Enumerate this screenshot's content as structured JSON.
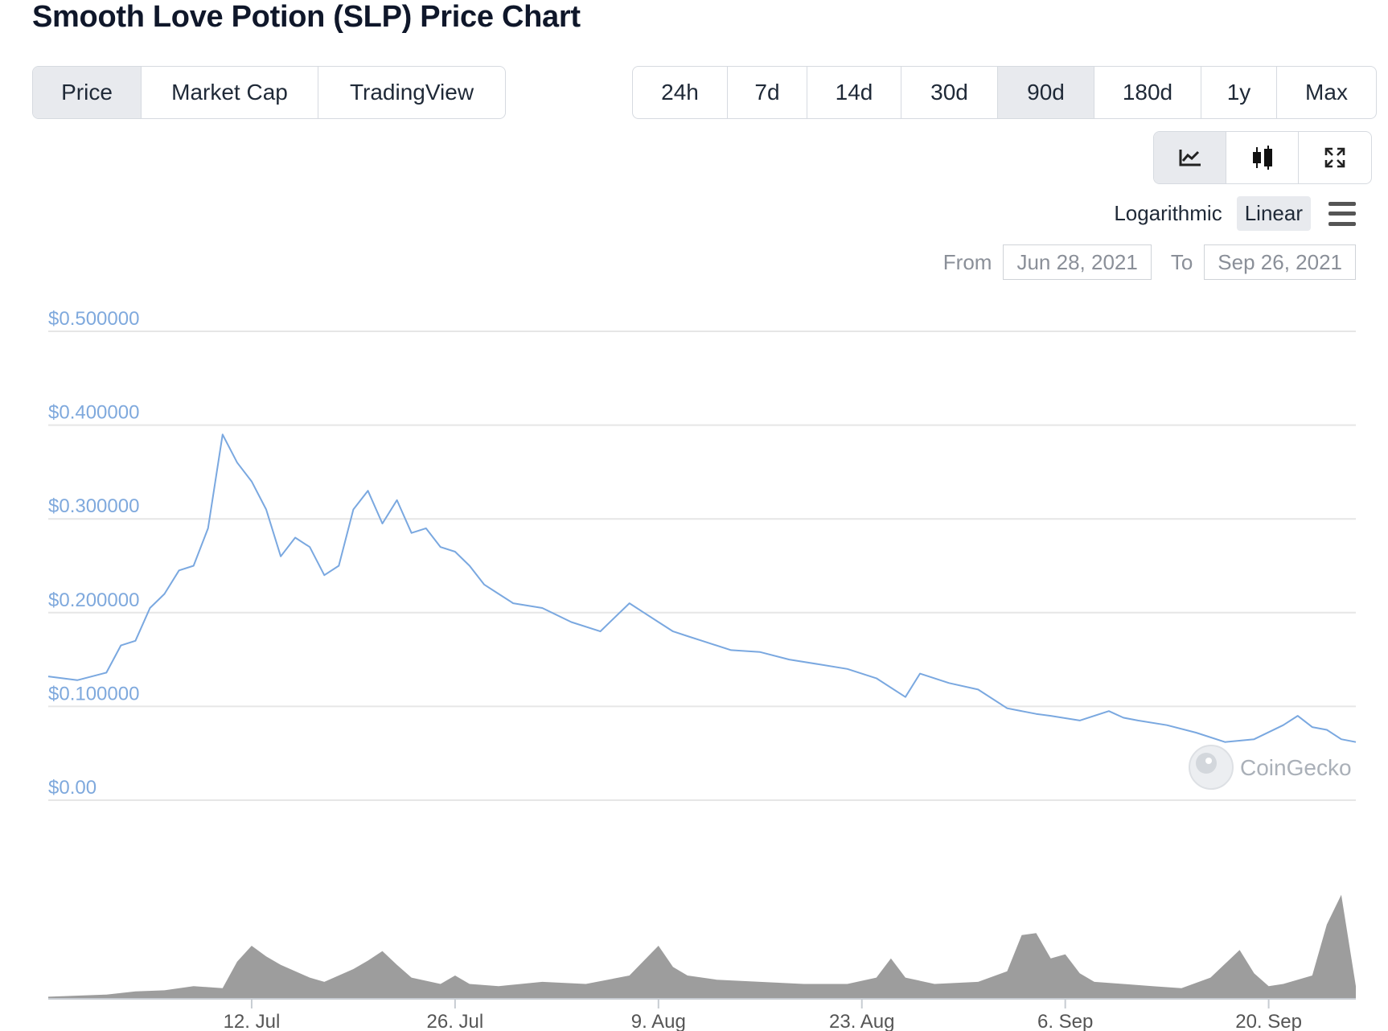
{
  "header": {
    "title": "Smooth Love Potion (SLP) Price Chart"
  },
  "tabs": [
    {
      "label": "Price",
      "active": true
    },
    {
      "label": "Market Cap",
      "active": false
    },
    {
      "label": "TradingView",
      "active": false
    }
  ],
  "ranges": [
    {
      "label": "24h",
      "active": false
    },
    {
      "label": "7d",
      "active": false
    },
    {
      "label": "14d",
      "active": false
    },
    {
      "label": "30d",
      "active": false
    },
    {
      "label": "90d",
      "active": true
    },
    {
      "label": "180d",
      "active": false
    },
    {
      "label": "1y",
      "active": false
    },
    {
      "label": "Max",
      "active": false
    }
  ],
  "tools": [
    {
      "icon": "line-chart-icon",
      "active": true
    },
    {
      "icon": "candlestick-icon",
      "active": false
    },
    {
      "icon": "fullscreen-icon",
      "active": false
    }
  ],
  "scale": {
    "log_label": "Logarithmic",
    "linear_label": "Linear",
    "active": "Linear"
  },
  "date_range": {
    "from_label": "From",
    "from_value": "Jun 28, 2021",
    "to_label": "To",
    "to_value": "Sep 26, 2021"
  },
  "watermark": "CoinGecko",
  "colors": {
    "price_line": "#7aa8e0",
    "volume": "#8c8c8c",
    "grid": "#e6e6e6"
  },
  "chart_data": {
    "type": "line",
    "title": "",
    "xlabel": "",
    "ylabel": "",
    "y_ticks": [
      "$0.00",
      "$0.100000",
      "$0.200000",
      "$0.300000",
      "$0.400000",
      "$0.500000"
    ],
    "ylim": [
      0,
      0.5
    ],
    "xlim": [
      "2021-06-28",
      "2021-09-26"
    ],
    "x_ticks": [
      {
        "date": "2021-07-12",
        "label": "12. Jul"
      },
      {
        "date": "2021-07-26",
        "label": "26. Jul"
      },
      {
        "date": "2021-08-09",
        "label": "9. Aug"
      },
      {
        "date": "2021-08-23",
        "label": "23. Aug"
      },
      {
        "date": "2021-09-06",
        "label": "6. Sep"
      },
      {
        "date": "2021-09-20",
        "label": "20. Sep"
      }
    ],
    "grid": true,
    "series": [
      {
        "x": [
          "2021-06-28",
          "2021-06-30",
          "2021-07-02",
          "2021-07-03",
          "2021-07-04",
          "2021-07-05",
          "2021-07-06",
          "2021-07-07",
          "2021-07-08",
          "2021-07-09",
          "2021-07-10",
          "2021-07-11",
          "2021-07-12",
          "2021-07-13",
          "2021-07-14",
          "2021-07-15",
          "2021-07-16",
          "2021-07-17",
          "2021-07-18",
          "2021-07-19",
          "2021-07-20",
          "2021-07-21",
          "2021-07-22",
          "2021-07-23",
          "2021-07-24",
          "2021-07-25",
          "2021-07-26",
          "2021-07-27",
          "2021-07-28",
          "2021-07-29",
          "2021-07-30",
          "2021-08-01",
          "2021-08-03",
          "2021-08-05",
          "2021-08-07",
          "2021-08-08",
          "2021-08-09",
          "2021-08-10",
          "2021-08-11",
          "2021-08-12",
          "2021-08-14",
          "2021-08-16",
          "2021-08-18",
          "2021-08-20",
          "2021-08-22",
          "2021-08-24",
          "2021-08-26",
          "2021-08-27",
          "2021-08-29",
          "2021-08-31",
          "2021-09-02",
          "2021-09-04",
          "2021-09-05",
          "2021-09-07",
          "2021-09-09",
          "2021-09-10",
          "2021-09-11",
          "2021-09-13",
          "2021-09-15",
          "2021-09-17",
          "2021-09-19",
          "2021-09-21",
          "2021-09-22",
          "2021-09-23",
          "2021-09-24",
          "2021-09-25",
          "2021-09-26"
        ],
        "y": [
          0.132,
          0.128,
          0.136,
          0.165,
          0.17,
          0.205,
          0.22,
          0.245,
          0.25,
          0.29,
          0.39,
          0.36,
          0.34,
          0.31,
          0.26,
          0.28,
          0.27,
          0.24,
          0.25,
          0.31,
          0.33,
          0.295,
          0.32,
          0.285,
          0.29,
          0.27,
          0.265,
          0.25,
          0.23,
          0.22,
          0.21,
          0.205,
          0.19,
          0.18,
          0.21,
          0.2,
          0.19,
          0.18,
          0.175,
          0.17,
          0.16,
          0.158,
          0.15,
          0.145,
          0.14,
          0.13,
          0.11,
          0.135,
          0.125,
          0.118,
          0.098,
          0.092,
          0.09,
          0.085,
          0.095,
          0.088,
          0.085,
          0.08,
          0.072,
          0.062,
          0.065,
          0.08,
          0.09,
          0.078,
          0.075,
          0.065,
          0.062
        ]
      }
    ],
    "volume": {
      "x": [
        "2021-06-28",
        "2021-07-02",
        "2021-07-04",
        "2021-07-06",
        "2021-07-08",
        "2021-07-10",
        "2021-07-11",
        "2021-07-12",
        "2021-07-13",
        "2021-07-14",
        "2021-07-16",
        "2021-07-17",
        "2021-07-19",
        "2021-07-20",
        "2021-07-21",
        "2021-07-22",
        "2021-07-23",
        "2021-07-25",
        "2021-07-26",
        "2021-07-27",
        "2021-07-29",
        "2021-08-01",
        "2021-08-04",
        "2021-08-07",
        "2021-08-08",
        "2021-08-09",
        "2021-08-10",
        "2021-08-11",
        "2021-08-13",
        "2021-08-16",
        "2021-08-19",
        "2021-08-22",
        "2021-08-24",
        "2021-08-25",
        "2021-08-26",
        "2021-08-28",
        "2021-08-31",
        "2021-09-02",
        "2021-09-03",
        "2021-09-04",
        "2021-09-05",
        "2021-09-06",
        "2021-09-07",
        "2021-09-08",
        "2021-09-10",
        "2021-09-12",
        "2021-09-14",
        "2021-09-16",
        "2021-09-18",
        "2021-09-19",
        "2021-09-20",
        "2021-09-21",
        "2021-09-23",
        "2021-09-24",
        "2021-09-25",
        "2021-09-26"
      ],
      "y": [
        0.02,
        0.04,
        0.07,
        0.08,
        0.12,
        0.1,
        0.35,
        0.5,
        0.4,
        0.32,
        0.2,
        0.16,
        0.28,
        0.36,
        0.45,
        0.32,
        0.2,
        0.14,
        0.22,
        0.14,
        0.12,
        0.16,
        0.14,
        0.22,
        0.36,
        0.5,
        0.3,
        0.22,
        0.18,
        0.16,
        0.14,
        0.14,
        0.2,
        0.38,
        0.2,
        0.14,
        0.16,
        0.26,
        0.6,
        0.62,
        0.38,
        0.42,
        0.24,
        0.16,
        0.14,
        0.12,
        0.1,
        0.2,
        0.46,
        0.24,
        0.12,
        0.14,
        0.22,
        0.7,
        0.98,
        0.12
      ]
    }
  }
}
